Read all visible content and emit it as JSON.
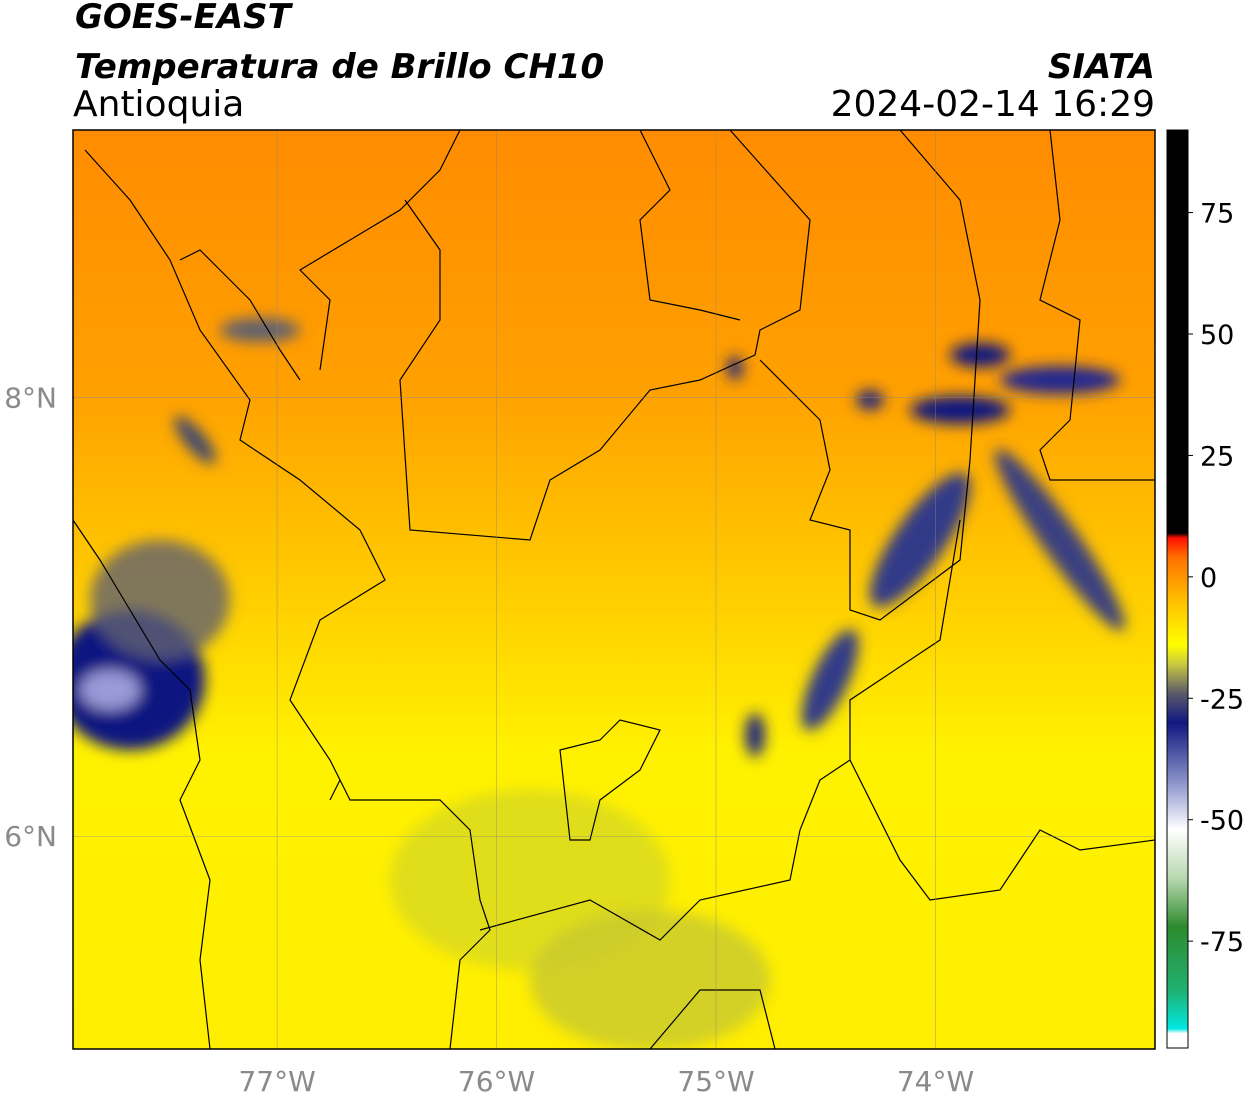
{
  "header": {
    "title": "GOES-EAST",
    "subtitle": "Temperatura de Brillo CH10",
    "region": "Antioquia",
    "source": "SIATA",
    "datetime": "2024-02-14 16:29"
  },
  "map": {
    "xlim": [
      -77.93,
      -73.0
    ],
    "ylim": [
      5.03,
      9.22
    ],
    "xticks": [
      {
        "value": -77,
        "label": "77°W"
      },
      {
        "value": -76,
        "label": "76°W"
      },
      {
        "value": -75,
        "label": "75°W"
      },
      {
        "value": -74,
        "label": "74°W"
      }
    ],
    "yticks": [
      {
        "value": 8,
        "label": "8°N"
      },
      {
        "value": 6,
        "label": "6°N"
      }
    ],
    "grid": true,
    "colorbar": {
      "lim": [
        -97,
        92
      ],
      "ticks": [
        75,
        50,
        25,
        0,
        -25,
        -50,
        -75
      ],
      "stops": [
        {
          "value": -97,
          "color": "#ffffff"
        },
        {
          "value": -94,
          "color": "#ffffff"
        },
        {
          "value": -93,
          "color": "#00e8e0"
        },
        {
          "value": -85,
          "color": "#20b070"
        },
        {
          "value": -72,
          "color": "#2e8b2e"
        },
        {
          "value": -62,
          "color": "#b8d8b0"
        },
        {
          "value": -52,
          "color": "#ffffff"
        },
        {
          "value": -42,
          "color": "#8890c8"
        },
        {
          "value": -30,
          "color": "#101880"
        },
        {
          "value": -24,
          "color": "#5a5a6a"
        },
        {
          "value": -18,
          "color": "#c8c840"
        },
        {
          "value": -14,
          "color": "#ffff00"
        },
        {
          "value": -5,
          "color": "#ffc000"
        },
        {
          "value": 4,
          "color": "#ff7000"
        },
        {
          "value": 8,
          "color": "#ff1000"
        },
        {
          "value": 9,
          "color": "#000000"
        },
        {
          "value": 92,
          "color": "#000000"
        }
      ]
    }
  }
}
